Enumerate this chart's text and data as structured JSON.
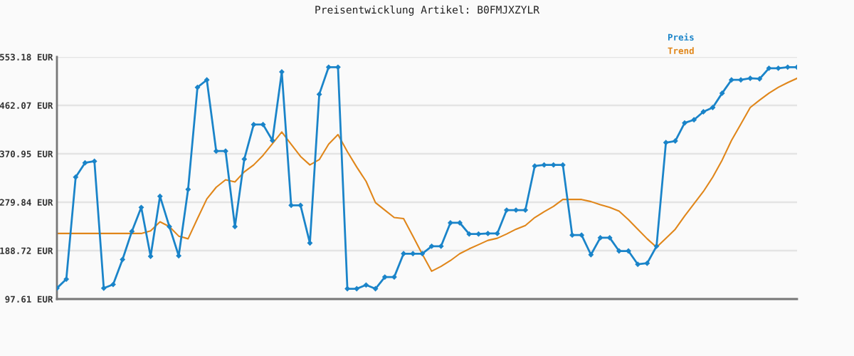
{
  "chart_data": {
    "type": "line",
    "title": "Preisentwicklung Artikel: B0FMJXZYLR",
    "categories": [
      null,
      null,
      null,
      null,
      null,
      null,
      null,
      null,
      null,
      null,
      null,
      null,
      null,
      null,
      null,
      null,
      null,
      null,
      null,
      null,
      null,
      null,
      null,
      null,
      null,
      null,
      null,
      null,
      null,
      null,
      null,
      null,
      null,
      null,
      null,
      null,
      null,
      null,
      null,
      null,
      null,
      null,
      null,
      null,
      null,
      null,
      null,
      null,
      null,
      null,
      null,
      null,
      null,
      null,
      null,
      null,
      null,
      null,
      null,
      null,
      null,
      null,
      null,
      null,
      null,
      null,
      null,
      null,
      null,
      null,
      null,
      null,
      null,
      null,
      null,
      null,
      null,
      null,
      null,
      null
    ],
    "series": [
      {
        "name": "Preis",
        "color": "#1a84c9",
        "marker": "diamond",
        "values": [
          118,
          135,
          327,
          354,
          357,
          118,
          125,
          172,
          225,
          270,
          178,
          291,
          234,
          179,
          304,
          496,
          510,
          376,
          376,
          234,
          361,
          426,
          426,
          396,
          525,
          274,
          274,
          203,
          483,
          534,
          534,
          117,
          117,
          124,
          117,
          139,
          139,
          183,
          183,
          183,
          197,
          197,
          241,
          241,
          220,
          220,
          221,
          221,
          265,
          265,
          265,
          348,
          350,
          350,
          350,
          218,
          218,
          181,
          213,
          213,
          188,
          188,
          163,
          165,
          197,
          392,
          395,
          429,
          435,
          450,
          458,
          485,
          510,
          510,
          513,
          512,
          532,
          532,
          534,
          534
        ]
      },
      {
        "name": "Trend",
        "color": "#e0861a",
        "marker": "none",
        "values": [
          221,
          221,
          221,
          221,
          221,
          221,
          221,
          221,
          221,
          221,
          226,
          243,
          234,
          216,
          211,
          249,
          286,
          308,
          322,
          318,
          337,
          350,
          368,
          390,
          412,
          389,
          366,
          350,
          360,
          389,
          407,
          375,
          346,
          319,
          279,
          265,
          251,
          249,
          216,
          182,
          150,
          159,
          170,
          183,
          192,
          200,
          208,
          212,
          220,
          229,
          236,
          251,
          262,
          272,
          285,
          285,
          285,
          281,
          275,
          270,
          263,
          247,
          229,
          211,
          195,
          212,
          229,
          254,
          277,
          300,
          327,
          359,
          396,
          427,
          458,
          472,
          485,
          496,
          505,
          513
        ]
      }
    ],
    "ylim": [
      97.61,
      553.18
    ],
    "yticks": [
      {
        "value": 97.61,
        "label": "97.61 EUR"
      },
      {
        "value": 188.72,
        "label": "188.72 EUR"
      },
      {
        "value": 279.84,
        "label": "279.84 EUR"
      },
      {
        "value": 370.95,
        "label": "370.95 EUR"
      },
      {
        "value": 462.07,
        "label": "462.07 EUR"
      },
      {
        "value": 553.18,
        "label": "553.18 EUR"
      }
    ],
    "grid": "y",
    "legend": "top right",
    "tick_labels": "y",
    "line_style": "solid"
  }
}
